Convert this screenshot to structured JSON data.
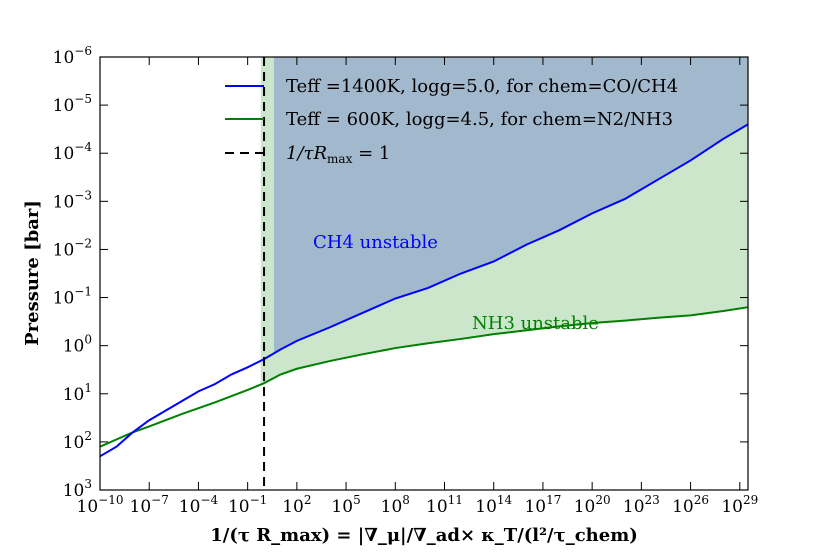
{
  "chart_data": {
    "type": "line",
    "xscale": "log",
    "yscale": "log",
    "xlim_exp": [
      -10,
      29.5
    ],
    "ylim_exp": [
      -6,
      3
    ],
    "y_inverted": true,
    "xlabel": "1/(τ R_max) = |∇_μ|/∇_ad× κ_T/(l²/τ_chem)",
    "ylabel": "Pressure [bar]",
    "x_tick_exponents": [
      -10,
      -7,
      -4,
      -1,
      2,
      5,
      8,
      11,
      14,
      17,
      20,
      23,
      26,
      29
    ],
    "y_tick_exponents": [
      -6,
      -5,
      -4,
      -3,
      -2,
      -1,
      0,
      1,
      2,
      3
    ],
    "tick_base": "10",
    "series": [
      {
        "name": "Teff =1400K, logg=5.0, for chem=CO/CH4",
        "color": "#0000ff",
        "points_log": [
          [
            -10.0,
            2.3
          ],
          [
            -9.0,
            2.1
          ],
          [
            -8.0,
            1.8
          ],
          [
            -7.0,
            1.55
          ],
          [
            -6.0,
            1.35
          ],
          [
            -5.0,
            1.15
          ],
          [
            -4.0,
            0.95
          ],
          [
            -3.0,
            0.8
          ],
          [
            -2.0,
            0.6
          ],
          [
            -1.0,
            0.45
          ],
          [
            0.0,
            0.28
          ],
          [
            1.0,
            0.08
          ],
          [
            2.0,
            -0.1
          ],
          [
            4.0,
            -0.38
          ],
          [
            6.0,
            -0.68
          ],
          [
            8.0,
            -0.98
          ],
          [
            10.0,
            -1.2
          ],
          [
            12.0,
            -1.5
          ],
          [
            14.0,
            -1.75
          ],
          [
            16.0,
            -2.1
          ],
          [
            18.0,
            -2.4
          ],
          [
            20.0,
            -2.75
          ],
          [
            22.0,
            -3.05
          ],
          [
            24.0,
            -3.45
          ],
          [
            26.0,
            -3.85
          ],
          [
            28.0,
            -4.3
          ],
          [
            29.5,
            -4.6
          ]
        ]
      },
      {
        "name": "Teff = 600K, logg=4.5, for chem=N2/NH3",
        "color": "#008000",
        "points_log": [
          [
            -10.0,
            2.1
          ],
          [
            -9.0,
            1.95
          ],
          [
            -8.0,
            1.8
          ],
          [
            -7.0,
            1.68
          ],
          [
            -6.0,
            1.55
          ],
          [
            -5.0,
            1.42
          ],
          [
            -4.0,
            1.3
          ],
          [
            -3.0,
            1.18
          ],
          [
            -2.0,
            1.05
          ],
          [
            -1.0,
            0.92
          ],
          [
            0.0,
            0.78
          ],
          [
            1.0,
            0.6
          ],
          [
            2.0,
            0.48
          ],
          [
            4.0,
            0.32
          ],
          [
            6.0,
            0.18
          ],
          [
            8.0,
            0.05
          ],
          [
            10.0,
            -0.05
          ],
          [
            12.0,
            -0.14
          ],
          [
            14.0,
            -0.24
          ],
          [
            16.0,
            -0.32
          ],
          [
            18.0,
            -0.4
          ],
          [
            20.0,
            -0.47
          ],
          [
            22.0,
            -0.52
          ],
          [
            24.0,
            -0.58
          ],
          [
            26.0,
            -0.63
          ],
          [
            28.0,
            -0.72
          ],
          [
            29.5,
            -0.8
          ]
        ]
      },
      {
        "name": "1/τR_max = 1",
        "display_label": "1/τR",
        "display_sub": "max",
        "display_suffix": " = 1",
        "color": "#000000",
        "style": "dashed",
        "x_log": 0
      }
    ],
    "regions": [
      {
        "label": "CH4 unstable",
        "color": "#0000ff",
        "fill": "#a2b8cd",
        "x_start_log": 0.6
      },
      {
        "label": "NH3 unstable",
        "color": "#008000",
        "fill": "#cce6cc",
        "x_start_log": -0.2
      }
    ]
  }
}
